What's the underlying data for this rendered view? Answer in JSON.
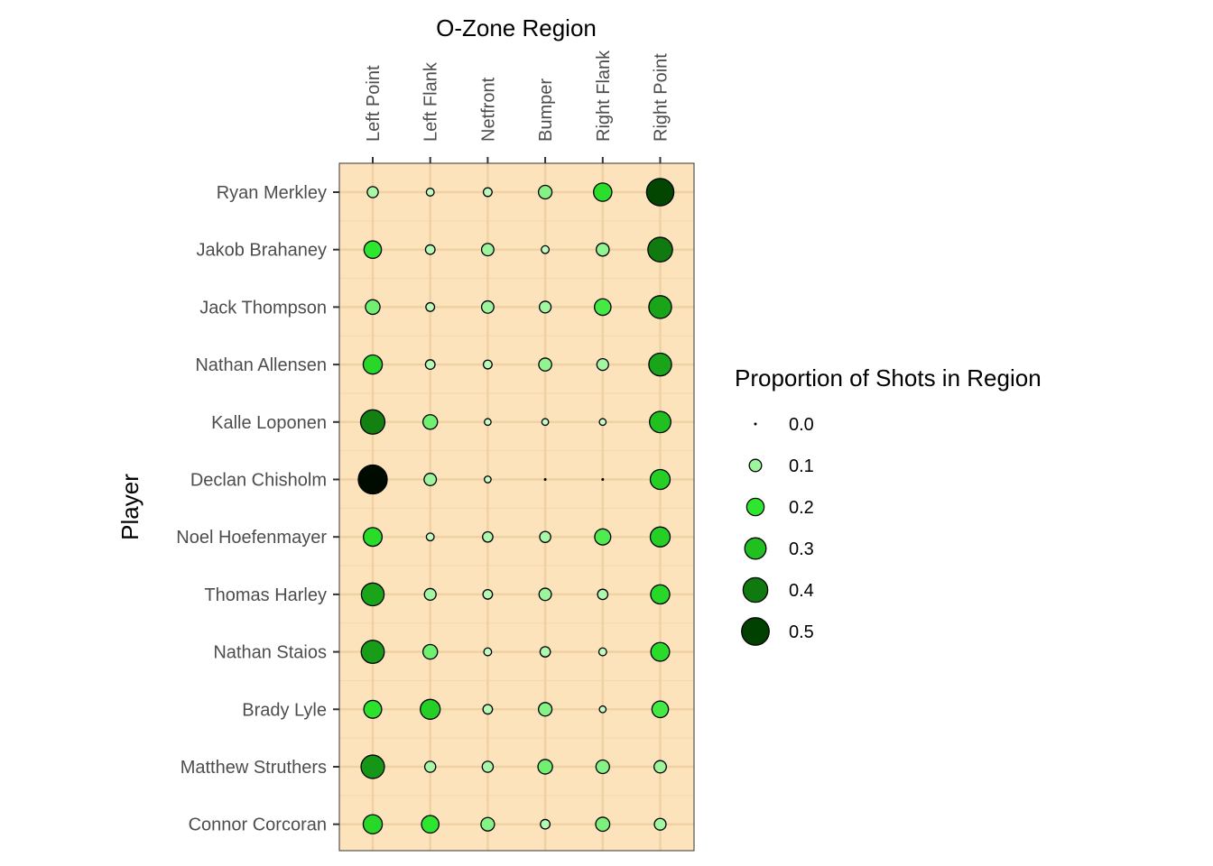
{
  "chart_data": {
    "type": "scatter",
    "title": "",
    "xlabel": "O-Zone Region",
    "ylabel": "Player",
    "x_axis_position": "top",
    "grid": true,
    "panel_background": "#fde3bc",
    "point_border": "#000000",
    "categories_x": [
      "Left Point",
      "Left Flank",
      "Netfront",
      "Bumper",
      "Right Flank",
      "Right Point"
    ],
    "categories_y": [
      "Ryan Merkley",
      "Jakob Brahaney",
      "Jack Thompson",
      "Nathan Allensen",
      "Kalle Loponen",
      "Declan Chisholm",
      "Noel Hoefenmayer",
      "Thomas Harley",
      "Nathan Staios",
      "Brady Lyle",
      "Matthew Struthers",
      "Connor Corcoran"
    ],
    "values": [
      [
        0.08,
        0.04,
        0.05,
        0.12,
        0.22,
        0.49
      ],
      [
        0.2,
        0.06,
        0.1,
        0.04,
        0.11,
        0.4
      ],
      [
        0.14,
        0.05,
        0.1,
        0.09,
        0.18,
        0.34
      ],
      [
        0.24,
        0.06,
        0.05,
        0.11,
        0.09,
        0.34
      ],
      [
        0.39,
        0.14,
        0.03,
        0.03,
        0.03,
        0.3
      ],
      [
        0.55,
        0.1,
        0.03,
        0.0,
        0.0,
        0.26
      ],
      [
        0.23,
        0.04,
        0.07,
        0.08,
        0.17,
        0.26
      ],
      [
        0.34,
        0.09,
        0.06,
        0.1,
        0.07,
        0.24
      ],
      [
        0.35,
        0.14,
        0.04,
        0.07,
        0.04,
        0.23
      ],
      [
        0.21,
        0.26,
        0.06,
        0.12,
        0.03,
        0.18
      ],
      [
        0.36,
        0.08,
        0.08,
        0.14,
        0.12,
        0.1
      ],
      [
        0.24,
        0.2,
        0.12,
        0.06,
        0.13,
        0.09
      ]
    ],
    "legend": {
      "title": "Proportion of Shots in Region",
      "placement": "right",
      "entries": [
        {
          "label": "0.0",
          "value": 0.0
        },
        {
          "label": "0.1",
          "value": 0.1
        },
        {
          "label": "0.2",
          "value": 0.2
        },
        {
          "label": "0.3",
          "value": 0.3
        },
        {
          "label": "0.4",
          "value": 0.4
        },
        {
          "label": "0.5",
          "value": 0.5
        }
      ]
    },
    "color_scale": [
      {
        "value": 0.0,
        "color": "#d9ffd9"
      },
      {
        "value": 0.1,
        "color": "#9cf59c"
      },
      {
        "value": 0.2,
        "color": "#2ee62e"
      },
      {
        "value": 0.3,
        "color": "#20c020"
      },
      {
        "value": 0.4,
        "color": "#107a10"
      },
      {
        "value": 0.5,
        "color": "#004000"
      },
      {
        "value": 0.56,
        "color": "#000000"
      }
    ]
  }
}
